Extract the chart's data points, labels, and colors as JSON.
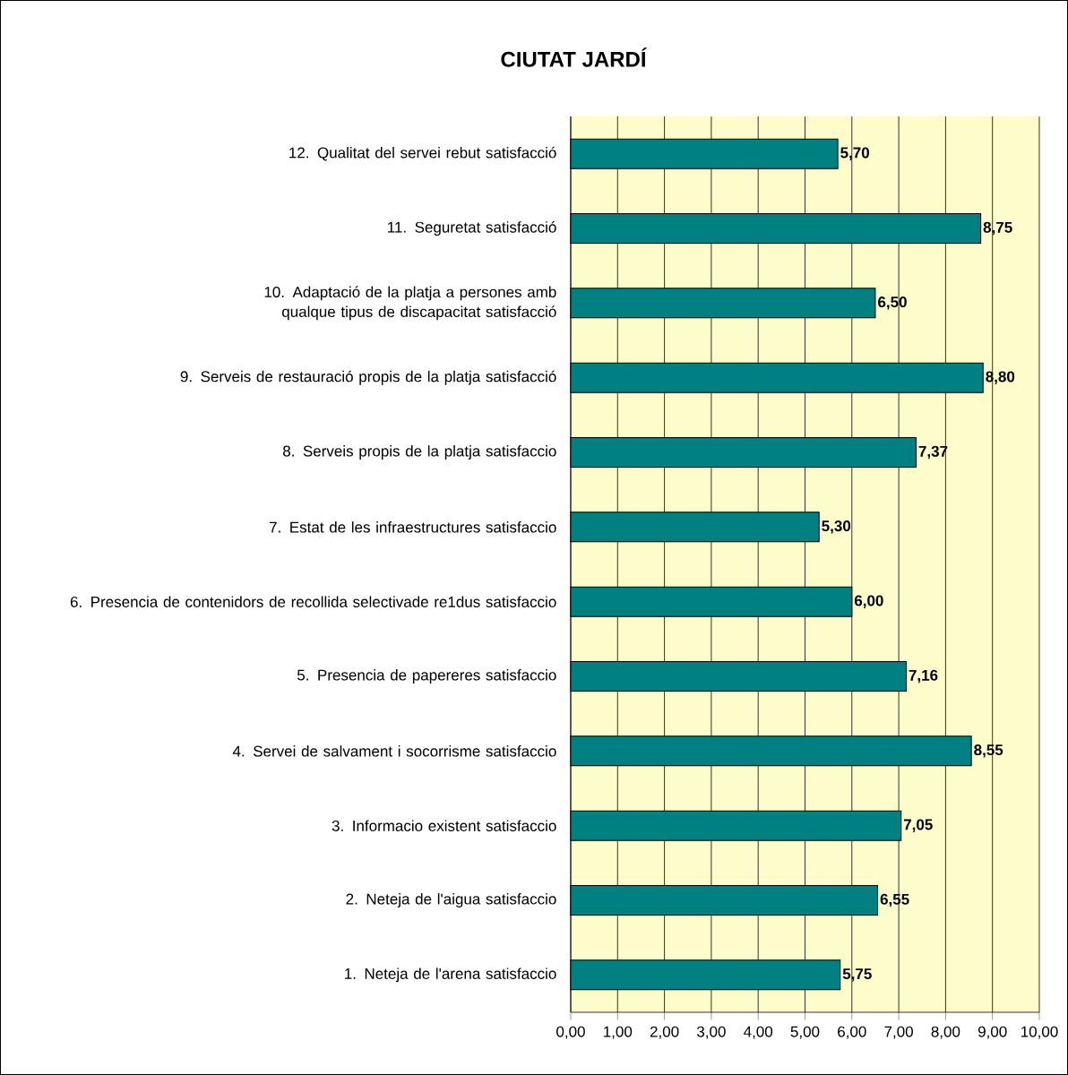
{
  "chart_data": {
    "type": "bar",
    "orientation": "horizontal",
    "title": "CIUTAT JARDÍ",
    "categories": [
      "12. Qualitat del servei rebut satisfacció",
      "11. Seguretat satisfacció",
      "10. Adaptació de la platja a persones amb qualque tipus de discapacitat  satisfacció",
      "9. Serveis de restauració propis de la platja satisfacció",
      "8. Serveis propis de la platja satisfaccio",
      "7. Estat de les infraestructures satisfaccio",
      "6. Presencia de contenidors de recollida selectivade re1dus satisfaccio",
      "5. Presencia de papereres satisfaccio",
      "4. Servei de salvament i socorrisme satisfaccio",
      "3. Informacio existent satisfaccio",
      "2. Neteja de l'aigua satisfaccio",
      "1. Neteja de l'arena satisfaccio"
    ],
    "values": [
      5.7,
      8.75,
      6.5,
      8.8,
      7.37,
      5.3,
      6.0,
      7.16,
      8.55,
      7.05,
      6.55,
      5.75
    ],
    "value_labels": [
      "5,70",
      "8,75",
      "6,50",
      "8,80",
      "7,37",
      "5,30",
      "6,00",
      "7,16",
      "8,55",
      "7,05",
      "6,55",
      "5,75"
    ],
    "color": "#008080",
    "xlim": [
      0,
      10
    ],
    "xticks": [
      {
        "value": 0,
        "label": "0,00"
      },
      {
        "value": 1,
        "label": "1,00"
      },
      {
        "value": 2,
        "label": "2,00"
      },
      {
        "value": 3,
        "label": "3,00"
      },
      {
        "value": 4,
        "label": "4,00"
      },
      {
        "value": 5,
        "label": "5,00"
      },
      {
        "value": 6,
        "label": "6,00"
      },
      {
        "value": 7,
        "label": "7,00"
      },
      {
        "value": 8,
        "label": "8,00"
      },
      {
        "value": 9,
        "label": "9,00"
      },
      {
        "value": 10,
        "label": "10,00"
      }
    ],
    "grid": "x"
  }
}
